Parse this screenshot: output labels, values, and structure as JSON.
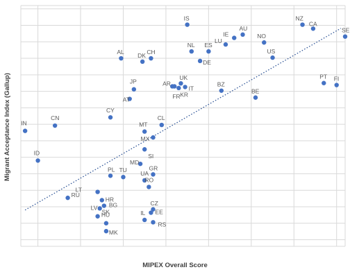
{
  "chart_data": {
    "type": "scatter",
    "title": "",
    "xlabel": "MIPEX Overall Score",
    "ylabel": "Migrant Acceptance Index (Gallup)",
    "grid": true,
    "legend": "none",
    "xlim": [
      16,
      92
    ],
    "ylim": [
      1.3,
      8.6
    ],
    "points": [
      {
        "label": "IS",
        "x": 55,
        "y": 8.02
      },
      {
        "label": "AU",
        "x": 68,
        "y": 7.72
      },
      {
        "label": "IE",
        "x": 66,
        "y": 7.62
      },
      {
        "label": "LU",
        "x": 64,
        "y": 7.42
      },
      {
        "label": "ES",
        "x": 60,
        "y": 7.21
      },
      {
        "label": "NL",
        "x": 56,
        "y": 7.21
      },
      {
        "label": "NO",
        "x": 73,
        "y": 7.48
      },
      {
        "label": "NZ",
        "x": 82,
        "y": 8.02
      },
      {
        "label": "CA",
        "x": 84.5,
        "y": 7.9
      },
      {
        "label": "SE",
        "x": 92,
        "y": 7.66
      },
      {
        "label": "US",
        "x": 75,
        "y": 7.02
      },
      {
        "label": "DE",
        "x": 58,
        "y": 6.92
      },
      {
        "label": "AL",
        "x": 39.5,
        "y": 7.0
      },
      {
        "label": "DK",
        "x": 44.5,
        "y": 6.9
      },
      {
        "label": "CH",
        "x": 46.5,
        "y": 7.0
      },
      {
        "label": "PT",
        "x": 87,
        "y": 6.25
      },
      {
        "label": "FI",
        "x": 90,
        "y": 6.19
      },
      {
        "label": "BZ",
        "x": 63,
        "y": 6.02
      },
      {
        "label": "BE",
        "x": 71,
        "y": 5.81
      },
      {
        "label": "AR",
        "x": 51.5,
        "y": 6.15
      },
      {
        "label": "UK",
        "x": 53.5,
        "y": 6.24
      },
      {
        "label": "IT",
        "x": 54.5,
        "y": 6.13
      },
      {
        "label": "FR",
        "x": 53,
        "y": 6.1
      },
      {
        "label": "KR",
        "x": 52,
        "y": 6.15
      },
      {
        "label": "JP",
        "x": 42.5,
        "y": 6.06
      },
      {
        "label": "AT",
        "x": 41.5,
        "y": 5.77
      },
      {
        "label": "CY",
        "x": 37,
        "y": 5.21
      },
      {
        "label": "CL",
        "x": 49,
        "y": 4.98
      },
      {
        "label": "MT",
        "x": 45,
        "y": 4.78
      },
      {
        "label": "MX",
        "x": 47,
        "y": 4.6
      },
      {
        "label": "IN",
        "x": 17,
        "y": 4.8
      },
      {
        "label": "CN",
        "x": 24,
        "y": 4.96
      },
      {
        "label": "ID",
        "x": 20,
        "y": 3.9
      },
      {
        "label": "SI",
        "x": 45,
        "y": 4.24
      },
      {
        "label": "MD",
        "x": 44,
        "y": 3.8
      },
      {
        "label": "GR",
        "x": 47,
        "y": 3.48
      },
      {
        "label": "UA",
        "x": 45,
        "y": 3.3
      },
      {
        "label": "PL",
        "x": 37,
        "y": 3.44
      },
      {
        "label": "TU",
        "x": 40,
        "y": 3.4
      },
      {
        "label": "RO",
        "x": 46,
        "y": 3.1
      },
      {
        "label": "LT",
        "x": 34,
        "y": 2.95
      },
      {
        "label": "RU",
        "x": 27,
        "y": 2.77
      },
      {
        "label": "HR",
        "x": 35,
        "y": 2.7
      },
      {
        "label": "BG",
        "x": 35.5,
        "y": 2.53
      },
      {
        "label": "LV",
        "x": 34.5,
        "y": 2.45
      },
      {
        "label": "CZ",
        "x": 47,
        "y": 2.42
      },
      {
        "label": "EE",
        "x": 46.5,
        "y": 2.32
      },
      {
        "label": "SK",
        "x": 34,
        "y": 2.21
      },
      {
        "label": "IL",
        "x": 45,
        "y": 2.1
      },
      {
        "label": "HU",
        "x": 36,
        "y": 2.0
      },
      {
        "label": "RS",
        "x": 47,
        "y": 2.03
      },
      {
        "label": "MK",
        "x": 36,
        "y": 1.76
      }
    ],
    "trendline": {
      "style": "dotted",
      "from": {
        "x": 17,
        "y": 2.4
      },
      "to": {
        "x": 91,
        "y": 7.91
      }
    }
  }
}
